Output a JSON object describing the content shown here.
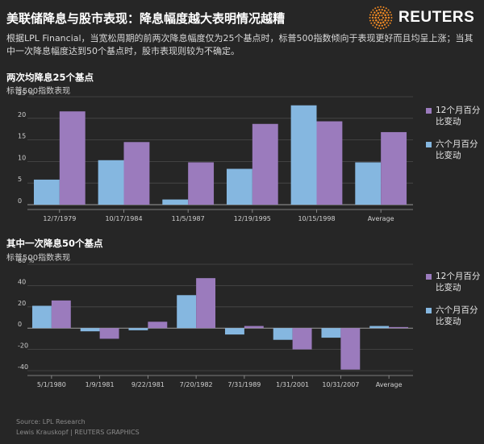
{
  "header": {
    "title": "美联储降息与股市表现：降息幅度越大表明情况越糟",
    "subtitle": "根据LPL Financial，当宽松周期的前两次降息幅度仅为25个基点时，标普500指数倾向于表现更好而且均呈上涨；当其中一次降息幅度达到50个基点时，股市表现则较为不确定。",
    "logo_text": "REUTERS",
    "logo_icon": "reuters-dot-sphere-icon"
  },
  "colors": {
    "background": "#262626",
    "twelve_month": "#9b7bbd",
    "six_month": "#85b7e0",
    "grid": "#4a4a4a"
  },
  "sections": [
    {
      "title": "两次均降息25个基点",
      "subtitle": "标普500指数表现"
    },
    {
      "title": "其中一次降息50个基点",
      "subtitle": "标普500指数表现"
    }
  ],
  "legend": {
    "twelve_month": "12个月百分比变动",
    "six_month": "六个月百分比变动"
  },
  "chart_data": [
    {
      "type": "bar",
      "title": "两次均降息25个基点",
      "ylabel": "标普500指数表现",
      "ylim": [
        0,
        25
      ],
      "yticks": [
        "0",
        "5",
        "10",
        "15",
        "20",
        "25 %"
      ],
      "categories": [
        "12/7/1979",
        "10/17/1984",
        "11/5/1987",
        "12/19/1995",
        "10/15/1998",
        "Average"
      ],
      "series": [
        {
          "name": "六个月百分比变动",
          "values": [
            5.8,
            10.3,
            1.2,
            8.3,
            23.0,
            9.8
          ]
        },
        {
          "name": "12个月百分比变动",
          "values": [
            21.6,
            14.5,
            9.8,
            18.7,
            19.3,
            16.8
          ]
        }
      ]
    },
    {
      "type": "bar",
      "title": "其中一次降息50个基点",
      "ylabel": "标普500指数表现",
      "ylim": [
        -40,
        60
      ],
      "yticks": [
        "-40",
        "-20",
        "0",
        "20",
        "40",
        "60 %"
      ],
      "categories": [
        "5/1/1980",
        "1/9/1981",
        "9/22/1981",
        "7/20/1982",
        "7/31/1989",
        "1/31/2001",
        "10/31/2007",
        "Average"
      ],
      "series": [
        {
          "name": "六个月百分比变动",
          "values": [
            21,
            -3,
            -2,
            31,
            -6,
            -11,
            -9,
            2
          ]
        },
        {
          "name": "12个月百分比变动",
          "values": [
            26,
            -10,
            6,
            47,
            2,
            -20,
            -39,
            1
          ]
        }
      ]
    }
  ],
  "footer": {
    "source": "Source: LPL Research",
    "credit": "Lewis Krauskopf  | REUTERS GRAPHICS"
  }
}
